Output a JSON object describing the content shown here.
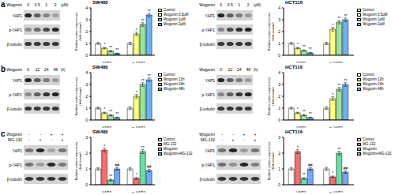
{
  "chart_data": [
    {
      "type": "bar",
      "title": "SW480",
      "categories": [
        "YAP1",
        "p-YAP1"
      ],
      "ylabel": "Relative protein expression (fold change)",
      "ylim": [
        0,
        4
      ],
      "yticks": [
        0,
        1,
        2,
        3,
        4
      ],
      "legend": "upper right",
      "series": [
        {
          "name": "Control",
          "color": "#ffffff",
          "values": [
            1,
            1
          ],
          "errors": [
            0.08,
            0.1
          ],
          "annotations": [
            null,
            null
          ]
        },
        {
          "name": "Wogonin 0.5μM",
          "color": "#ffff80",
          "values": [
            0.6,
            1.8
          ],
          "errors": [
            0.06,
            0.15
          ],
          "annotations": [
            "*",
            "*"
          ]
        },
        {
          "name": "Wogonin 1μM",
          "color": "#99e699",
          "values": [
            0.35,
            2.6
          ],
          "errors": [
            0.05,
            0.15
          ],
          "annotations": [
            "**",
            "**"
          ]
        },
        {
          "name": "Wogonin 2μM",
          "color": "#66b3ff",
          "values": [
            0.15,
            3.4
          ],
          "errors": [
            0.04,
            0.15
          ],
          "annotations": [
            "**",
            "**"
          ]
        }
      ]
    },
    {
      "type": "bar",
      "title": "HCT116",
      "categories": [
        "YAP1",
        "p-YAP1"
      ],
      "ylabel": "Relative protein expression (fold change)",
      "ylim": [
        0,
        4
      ],
      "yticks": [
        0,
        1,
        2,
        3,
        4
      ],
      "legend": "upper right",
      "series": [
        {
          "name": "Control",
          "color": "#ffffff",
          "values": [
            1,
            1
          ],
          "errors": [
            0.08,
            0.1
          ],
          "annotations": [
            null,
            null
          ]
        },
        {
          "name": "Wogonin 0.5μM",
          "color": "#ffff80",
          "values": [
            0.6,
            2.2
          ],
          "errors": [
            0.06,
            0.15
          ],
          "annotations": [
            "*",
            "*"
          ]
        },
        {
          "name": "Wogonin 1μM",
          "color": "#99e699",
          "values": [
            0.4,
            2.8
          ],
          "errors": [
            0.05,
            0.15
          ],
          "annotations": [
            "**",
            "**"
          ]
        },
        {
          "name": "Wogonin 2μM",
          "color": "#66b3ff",
          "values": [
            0.2,
            3.0
          ],
          "errors": [
            0.04,
            0.15
          ],
          "annotations": [
            "**",
            "**"
          ]
        }
      ]
    },
    {
      "type": "bar",
      "title": "SW480",
      "categories": [
        "YAP1",
        "p-YAP1"
      ],
      "ylabel": "Relative protein expression (fold change)",
      "ylim": [
        0,
        4
      ],
      "yticks": [
        0,
        1,
        2,
        3,
        4
      ],
      "legend": "upper right",
      "series": [
        {
          "name": "Control",
          "color": "#ffffff",
          "values": [
            1,
            1
          ],
          "errors": [
            0.08,
            0.1
          ],
          "annotations": [
            null,
            null
          ]
        },
        {
          "name": "Wogonin 12h",
          "color": "#ffff80",
          "values": [
            0.6,
            2.0
          ],
          "errors": [
            0.06,
            0.15
          ],
          "annotations": [
            "*",
            "*"
          ]
        },
        {
          "name": "Wogonin 24h",
          "color": "#99e699",
          "values": [
            0.4,
            3.0
          ],
          "errors": [
            0.05,
            0.15
          ],
          "annotations": [
            "**",
            "**"
          ]
        },
        {
          "name": "Wogonin 48h",
          "color": "#66b3ff",
          "values": [
            0.2,
            3.4
          ],
          "errors": [
            0.04,
            0.15
          ],
          "annotations": [
            "**",
            "**"
          ]
        }
      ]
    },
    {
      "type": "bar",
      "title": "HCT116",
      "categories": [
        "YAP1",
        "p-YAP1"
      ],
      "ylabel": "Relative protein expression (fold change)",
      "ylim": [
        0,
        4
      ],
      "yticks": [
        0,
        1,
        2,
        3,
        4
      ],
      "legend": "upper right",
      "series": [
        {
          "name": "Control",
          "color": "#ffffff",
          "values": [
            1,
            1
          ],
          "errors": [
            0.08,
            0.1
          ],
          "annotations": [
            null,
            null
          ]
        },
        {
          "name": "Wogonin 12h",
          "color": "#ffff80",
          "values": [
            0.6,
            1.8
          ],
          "errors": [
            0.06,
            0.15
          ],
          "annotations": [
            "*",
            "*"
          ]
        },
        {
          "name": "Wogonin 24h",
          "color": "#99e699",
          "values": [
            0.4,
            2.6
          ],
          "errors": [
            0.05,
            0.15
          ],
          "annotations": [
            "**",
            "**"
          ]
        },
        {
          "name": "Wogonin 48h",
          "color": "#66b3ff",
          "values": [
            0.2,
            3.0
          ],
          "errors": [
            0.04,
            0.15
          ],
          "annotations": [
            "**",
            "**"
          ]
        }
      ]
    },
    {
      "type": "bar",
      "title": "SW480",
      "categories": [
        "YAP1",
        "p-YAP1"
      ],
      "ylabel": "Relative protein expression (fold change)",
      "ylim": [
        0,
        3
      ],
      "yticks": [
        0,
        1,
        2,
        3
      ],
      "legend": "upper right",
      "series": [
        {
          "name": "Control",
          "color": "#ffffff",
          "values": [
            1,
            1
          ],
          "errors": [
            0.08,
            0.1
          ],
          "annotations": [
            null,
            null
          ]
        },
        {
          "name": "MG-132",
          "color": "#ff6b6b",
          "values": [
            2.2,
            0.4
          ],
          "errors": [
            0.12,
            0.05
          ],
          "annotations": [
            "*",
            "*"
          ]
        },
        {
          "name": "Wogonin",
          "color": "#66e0a3",
          "values": [
            0.3,
            2.1
          ],
          "errors": [
            0.05,
            0.12
          ],
          "annotations": [
            "**",
            "**"
          ]
        },
        {
          "name": "Wogonin+MG-132",
          "color": "#6fa8ff",
          "values": [
            1.0,
            0.9
          ],
          "errors": [
            0.08,
            0.08
          ],
          "annotations": [
            "##",
            "##"
          ]
        }
      ]
    },
    {
      "type": "bar",
      "title": "HCT116",
      "categories": [
        "YAP1",
        "p-YAP1"
      ],
      "ylabel": "Relative protein expression (fold change)",
      "ylim": [
        0,
        3
      ],
      "yticks": [
        0,
        1,
        2,
        3
      ],
      "legend": "upper right",
      "series": [
        {
          "name": "Control",
          "color": "#ffffff",
          "values": [
            1,
            1
          ],
          "errors": [
            0.08,
            0.1
          ],
          "annotations": [
            null,
            null
          ]
        },
        {
          "name": "MG-132",
          "color": "#ff6b6b",
          "values": [
            2.1,
            0.5
          ],
          "errors": [
            0.12,
            0.05
          ],
          "annotations": [
            "*",
            "*"
          ]
        },
        {
          "name": "Wogonin",
          "color": "#66e0a3",
          "values": [
            0.4,
            2.0
          ],
          "errors": [
            0.05,
            0.12
          ],
          "annotations": [
            "**",
            "**"
          ]
        },
        {
          "name": "Wogonin+MG-132",
          "color": "#6fa8ff",
          "values": [
            1.0,
            0.8
          ],
          "errors": [
            0.08,
            0.08
          ],
          "annotations": [
            "##",
            "##"
          ]
        }
      ]
    }
  ],
  "panels": [
    {
      "letter": "a",
      "blots": [
        {
          "header": [
            {
              "label": "Wogonin",
              "lanes": [
                "0",
                "0.5",
                "1",
                "2"
              ],
              "unit": "(μM)"
            }
          ],
          "rows": [
            "YAP1",
            "p-YAP1",
            "β-tubulin"
          ]
        },
        {
          "header": [
            {
              "label": "Wogonin",
              "lanes": [
                "0",
                "0.5",
                "1",
                "2"
              ],
              "unit": "(μM)"
            }
          ],
          "rows": [
            "YAP1",
            "p-YAP1",
            "β-tubulin"
          ]
        }
      ]
    },
    {
      "letter": "b",
      "blots": [
        {
          "header": [
            {
              "label": "Wogonin",
              "lanes": [
                "0",
                "12",
                "24",
                "48"
              ],
              "unit": "(h)"
            }
          ],
          "rows": [
            "YAP1",
            "p-YAP1",
            "β-tubulin"
          ]
        },
        {
          "header": [
            {
              "label": "Wogonin",
              "lanes": [
                "0",
                "12",
                "24",
                "48"
              ],
              "unit": "(h)"
            }
          ],
          "rows": [
            "YAP1",
            "p-YAP1",
            "β-tubulin"
          ]
        }
      ]
    },
    {
      "letter": "c",
      "blots": [
        {
          "header": [
            {
              "label": "Wogonin",
              "lanes": [
                "-",
                "-",
                "+",
                "+"
              ]
            },
            {
              "label": "MG-132",
              "lanes": [
                "-",
                "+",
                "-",
                "+"
              ]
            }
          ],
          "rows": [
            "YAP1",
            "p-YAP1",
            "β-tubulin"
          ]
        },
        {
          "header": [
            {
              "label": "Wogonin",
              "lanes": [
                "-",
                "-",
                "+",
                "+"
              ]
            },
            {
              "label": "MG-132",
              "lanes": [
                "-",
                "+",
                "-",
                "+"
              ]
            }
          ],
          "rows": [
            "YAP1",
            "p-YAP1",
            "β-tubulin"
          ]
        }
      ]
    }
  ]
}
